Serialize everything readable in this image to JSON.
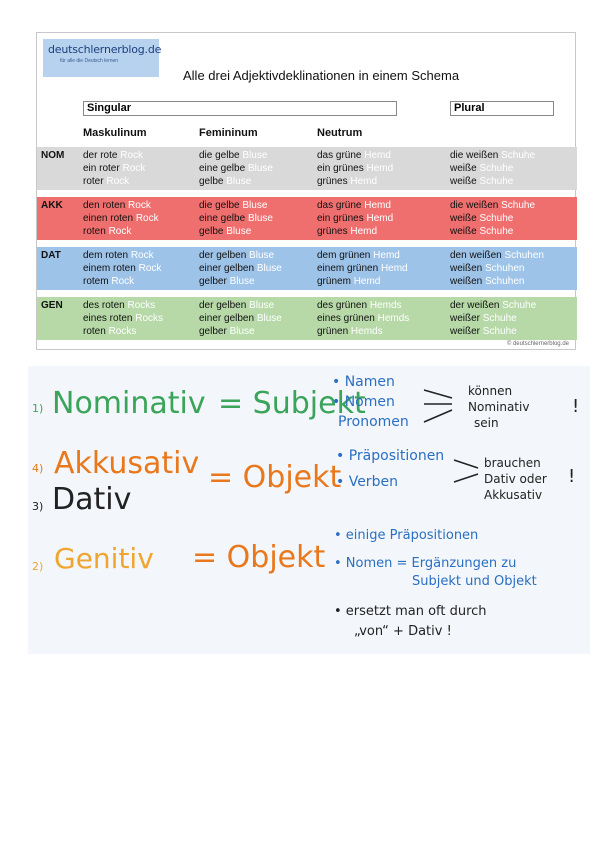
{
  "logo": {
    "name": "deutschlernerblog.de",
    "tagline": "für alle die Deutsch lernen"
  },
  "title": "Alle drei Adjektivdeklinationen in einem Schema",
  "headers": {
    "singular": "Singular",
    "plural": "Plural"
  },
  "columns": [
    "Maskulinum",
    "Femininum",
    "Neutrum"
  ],
  "rows": [
    {
      "case": "NOM",
      "color": "#d9d9d9",
      "cells": [
        [
          [
            "der rote ",
            "Rock"
          ],
          [
            "ein roter ",
            "Rock"
          ],
          [
            "roter ",
            "Rock"
          ]
        ],
        [
          [
            "die gelbe ",
            "Bluse"
          ],
          [
            "eine gelbe ",
            "Bluse"
          ],
          [
            "gelbe ",
            "Bluse"
          ]
        ],
        [
          [
            "das grüne ",
            "Hemd"
          ],
          [
            "ein grünes ",
            "Hemd"
          ],
          [
            "grünes ",
            "Hemd"
          ]
        ],
        [
          [
            "die weißen ",
            "Schuhe"
          ],
          [
            "weiße ",
            "Schuhe"
          ],
          [
            "weiße ",
            "Schuhe"
          ]
        ]
      ]
    },
    {
      "case": "AKK",
      "color": "#ef6f6f",
      "cells": [
        [
          [
            "den roten ",
            "Rock"
          ],
          [
            "einen roten ",
            "Rock"
          ],
          [
            "roten ",
            "Rock"
          ]
        ],
        [
          [
            "die gelbe ",
            "Bluse"
          ],
          [
            "eine gelbe ",
            "Bluse"
          ],
          [
            "gelbe ",
            "Bluse"
          ]
        ],
        [
          [
            "das grüne ",
            "Hemd"
          ],
          [
            "ein grünes ",
            "Hemd"
          ],
          [
            "grünes ",
            "Hemd"
          ]
        ],
        [
          [
            "die weißen ",
            "Schuhe"
          ],
          [
            "weiße ",
            "Schuhe"
          ],
          [
            "weiße ",
            "Schuhe"
          ]
        ]
      ]
    },
    {
      "case": "DAT",
      "color": "#9ec3e8",
      "cells": [
        [
          [
            "dem roten ",
            "Rock"
          ],
          [
            "einem roten ",
            "Rock"
          ],
          [
            "rotem ",
            "Rock"
          ]
        ],
        [
          [
            "der gelben ",
            "Bluse"
          ],
          [
            "einer gelben ",
            "Bluse"
          ],
          [
            "gelber ",
            "Bluse"
          ]
        ],
        [
          [
            "dem grünen ",
            "Hemd"
          ],
          [
            "einem grünen ",
            "Hemd"
          ],
          [
            "grünem ",
            "Hemd"
          ]
        ],
        [
          [
            "den weißen ",
            "Schuhen"
          ],
          [
            "weißen ",
            "Schuhen"
          ],
          [
            "weißen ",
            "Schuhen"
          ]
        ]
      ]
    },
    {
      "case": "GEN",
      "color": "#b7d9a8",
      "cells": [
        [
          [
            "des roten ",
            "Rocks"
          ],
          [
            "eines roten ",
            "Rocks"
          ],
          [
            "roten ",
            "Rocks"
          ]
        ],
        [
          [
            "der gelben ",
            "Bluse"
          ],
          [
            "einer gelben ",
            "Bluse"
          ],
          [
            "gelber ",
            "Bluse"
          ]
        ],
        [
          [
            "des grünen ",
            "Hemds"
          ],
          [
            "eines grünen ",
            "Hemds"
          ],
          [
            "grünen ",
            "Hemds"
          ]
        ],
        [
          [
            "der weißen ",
            "Schuhe"
          ],
          [
            "weißer ",
            "Schuhe"
          ],
          [
            "weißer ",
            "Schuhe"
          ]
        ]
      ]
    }
  ],
  "copyright": "© deutschlernerblog.de",
  "board": {
    "nom_num": "1)",
    "nom_label": "Nominativ",
    "nom_eq": "= Subjekt",
    "nom_items": [
      "• Namen",
      "• Nomen",
      "Pronomen"
    ],
    "nom_note": [
      "können",
      "Nominativ",
      "sein"
    ],
    "nom_excl": "!",
    "akk_num": "4)",
    "akk_label": "Akkusativ",
    "dat_num": "3)",
    "dat_label": "Dativ",
    "akk_eq": "= Objekt",
    "akk_items": [
      "• Präpositionen",
      "• Verben"
    ],
    "akk_note": [
      "brauchen",
      "Dativ oder",
      "Akkusativ"
    ],
    "akk_excl": "!",
    "gen_num": "2)",
    "gen_label": "Genitiv",
    "gen_eq": "= Objekt",
    "gen_items": [
      "• einige Präpositionen",
      "• Nomen = Ergänzungen zu",
      "Subjekt und Objekt",
      "• ersetzt man oft durch",
      "„von“ + Dativ !"
    ]
  }
}
